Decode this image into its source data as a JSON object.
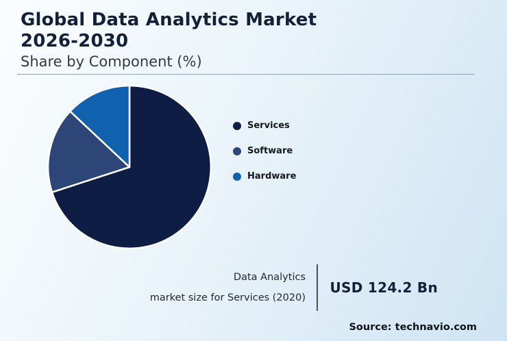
{
  "header": {
    "title_line1": "Global Data Analytics Market",
    "title_line2": "2026-2030",
    "subtitle": "Share by Component (%)"
  },
  "chart_data": {
    "type": "pie",
    "title": "Global Data Analytics Market 2026-2030 — Share by Component (%)",
    "labels": [
      "Services",
      "Software",
      "Hardware"
    ],
    "values": [
      70,
      17,
      13
    ],
    "colors": [
      "#0d1d44",
      "#2e4577",
      "#1062ae"
    ],
    "start": "top",
    "direction": "clockwise",
    "legend_position": "right",
    "slice_border_color": "#ffffff"
  },
  "legend": {
    "items": [
      {
        "label": "Services",
        "color": "#0d1d44"
      },
      {
        "label": "Software",
        "color": "#2e4577"
      },
      {
        "label": "Hardware",
        "color": "#1062ae"
      }
    ]
  },
  "callout": {
    "label_line1": "Data Analytics",
    "label_line2": "market size for Services (2020)",
    "value": "USD 124.2 Bn"
  },
  "footer": {
    "source": "Source: technavio.com"
  }
}
